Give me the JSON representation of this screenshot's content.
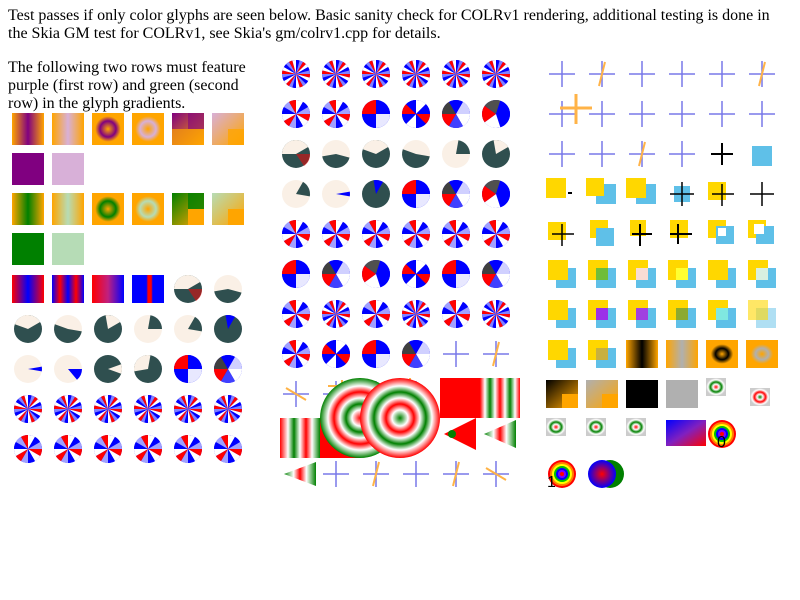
{
  "page": {
    "intro_text": "Test passes if only color glyphs are seen below. Basic sanity check for COLRv1 rendering, additional testing is done in the Skia GM test for COLRv1, see Skia's gm/colrv1.cpp for details.",
    "left_note": "The following two rows must feature purple (first row) and green (second row) in the glyph gradients."
  },
  "labels": {
    "zero": "0",
    "one": "1"
  },
  "colors": {
    "purple": "#800080",
    "light_purple": "#d8b0d8",
    "green": "#008000",
    "light_green": "#b6dcb6",
    "orange": "#ffa500",
    "blue": "#0000ff",
    "red": "#ff0000",
    "dark_slate": "#2f4f4f",
    "linen": "#faf0e6",
    "gold": "#ffd700",
    "sky": "#5fc0e8"
  },
  "glyph_rows": [
    {
      "panel": "left",
      "kinds": [
        "lin-purple-h",
        "lin-purple-soft",
        "rad-purple",
        "rad-purple-soft",
        "sweep-purple",
        "sweep-purple-soft"
      ]
    },
    {
      "panel": "left",
      "kinds": [
        "solid-purple",
        "solid-lightpurple"
      ]
    },
    {
      "panel": "left",
      "kinds": [
        "lin-green-h",
        "lin-green-soft",
        "rad-green",
        "rad-green-soft",
        "sweep-green",
        "sweep-green-soft"
      ]
    },
    {
      "panel": "left",
      "kinds": [
        "solid-green",
        "solid-lightgreen"
      ]
    },
    {
      "panel": "left",
      "kinds": [
        "lin-blue-red",
        "lin-blue-red-stripe",
        "lin-red-blue",
        "lin-blue-red-band",
        "pie-slate-a",
        "pie-linen-a"
      ]
    },
    {
      "panel": "left",
      "kinds": [
        "pie-slate-b",
        "pie-linen-b",
        "pie-slate-c",
        "pie-linen-c",
        "pie-linen-d",
        "pie-slate-d"
      ]
    },
    {
      "panel": "left",
      "kinds": [
        "pie-linen-e",
        "pie-linen-f",
        "pie-slate-e",
        "pie-slate-f",
        "sweep-bw",
        "sweep-bw2"
      ]
    },
    {
      "panel": "left",
      "kinds": [
        "burst",
        "burst",
        "burst",
        "burst",
        "burst",
        "burst"
      ]
    },
    {
      "panel": "left",
      "kinds": [
        "burst2",
        "burst2",
        "burst2",
        "burst2",
        "burst2",
        "burst2"
      ]
    },
    {
      "panel": "mid",
      "kinds": [
        "burst",
        "burst",
        "burst",
        "burst",
        "burst",
        "burst"
      ]
    },
    {
      "panel": "mid",
      "kinds": [
        "burst2",
        "burst2",
        "sweep-bw",
        "sweep-red",
        "sweep-bw2",
        "sweep-bw3"
      ]
    },
    {
      "panel": "mid",
      "kinds": [
        "pie-slate-a",
        "pie-linen-a",
        "pie-slate-b",
        "pie-linen-b",
        "pie-linen-c",
        "pie-slate-c"
      ]
    },
    {
      "panel": "mid",
      "kinds": [
        "pie-linen-d",
        "pie-linen-e",
        "pie-slate-d",
        "sweep-bw",
        "sweep-bw2",
        "sweep-bw3"
      ]
    },
    {
      "panel": "mid",
      "kinds": [
        "burst2",
        "burst2",
        "burst2",
        "burst2",
        "burst2",
        "burst2"
      ]
    },
    {
      "panel": "mid",
      "kinds": [
        "sweep-bw",
        "sweep-bw2",
        "sweep-bw3",
        "sweep-red",
        "sweep-bw",
        "sweep-bw2"
      ]
    },
    {
      "panel": "mid",
      "kinds": [
        "burst2",
        "burst",
        "burst2",
        "burst",
        "burst2",
        "burst"
      ]
    },
    {
      "panel": "mid",
      "kinds": [
        "burst2",
        "sweep-red",
        "sweep-bw",
        "sweep-bw2",
        "cross",
        "cross-o"
      ]
    },
    {
      "panel": "mid",
      "kinds": [
        "cross-o2",
        "cross-o3",
        "cross",
        "cross-o4",
        "rect-red",
        "stripes-rg"
      ]
    },
    {
      "panel": "mid",
      "kinds": [
        "stripes-rg2",
        "rect-red2",
        "rings-rg",
        "rings-rg2",
        "cone-r",
        "cone-g"
      ]
    },
    {
      "panel": "mid",
      "kinds": [
        "cone-g2",
        "cross",
        "cross-o",
        "cross",
        "cross-o",
        "cross-o2"
      ]
    },
    {
      "panel": "right",
      "kinds": [
        "cross",
        "cross-o",
        "cross",
        "cross",
        "cross",
        "cross-o"
      ]
    },
    {
      "panel": "right",
      "kinds": [
        "cross-big",
        "cross",
        "cross",
        "cross",
        "cross",
        "cross"
      ]
    },
    {
      "panel": "right",
      "kinds": [
        "cross",
        "cross",
        "cross-o",
        "cross",
        "cross-black",
        "sq-sky"
      ]
    },
    {
      "panel": "right",
      "kinds": [
        "sq-gold-dot",
        "sq-gold-sky",
        "sq-gold-sky2",
        "sq-sky-cross",
        "sq-gold-cross",
        "sq-sky-cross2"
      ]
    },
    {
      "panel": "right",
      "kinds": [
        "sq-gold-cross",
        "sq-sky-gold",
        "sq-gold-cross2",
        "sq-gold-black",
        "sq-outline-gold",
        "sq-outline-gold2"
      ]
    },
    {
      "panel": "right",
      "kinds": [
        "comp-gold-sky",
        "comp-green",
        "comp-pink",
        "comp-yellow",
        "comp-gold",
        "comp-pale"
      ]
    },
    {
      "panel": "right",
      "kinds": [
        "comp-gold-sky",
        "comp-purple",
        "comp-purple2",
        "comp-olive",
        "comp-pale2",
        "comp-pale3"
      ]
    },
    {
      "panel": "right",
      "kinds": [
        "comp-gold-sky",
        "comp-olive2",
        "lin-black-orange",
        "lin-gray",
        "rad-black-orange",
        "rad-gray-orange"
      ]
    },
    {
      "panel": "right",
      "kinds": [
        "lin-black-orange-sq",
        "lin-gray-orange",
        "solid-black",
        "solid-gray",
        "tiny-rings",
        "tiny-rings2"
      ]
    },
    {
      "panel": "right",
      "kinds": [
        "tiny-rings",
        "tiny-rings",
        "tiny-rings",
        "lin-blue-red-diag",
        "rainbow-ring-0"
      ]
    },
    {
      "panel": "right",
      "kinds": [
        "rainbow-ring-1",
        "purple-green-circles"
      ]
    }
  ]
}
